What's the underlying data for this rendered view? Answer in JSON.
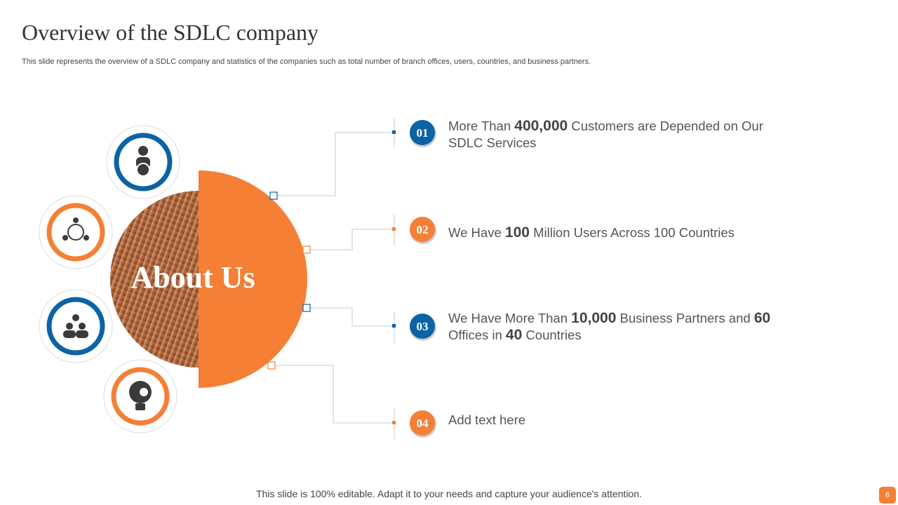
{
  "header": {
    "title": "Overview of the SDLC company",
    "subtitle": "This slide represents the overview of a SDLC company and statistics of the companies such as total number of branch offices, users, countries, and business partners."
  },
  "about": "About Us",
  "items": [
    {
      "number": "01",
      "segments": [
        "More Than ",
        "400,000",
        " Customers are Depended on Our SDLC Services"
      ]
    },
    {
      "number": "02",
      "segments": [
        "We Have ",
        "100",
        " Million Users Across 100 Countries"
      ]
    },
    {
      "number": "03",
      "segments": [
        "We Have More Than ",
        "10,000",
        " Business Partners and ",
        "60",
        " Offices in ",
        "40",
        " Countries"
      ]
    },
    {
      "number": "04",
      "segments": [
        "Add text here"
      ]
    }
  ],
  "footer": "This slide is 100% editable. Adapt it to your needs and capture your audience's attention.",
  "page_number": "6"
}
